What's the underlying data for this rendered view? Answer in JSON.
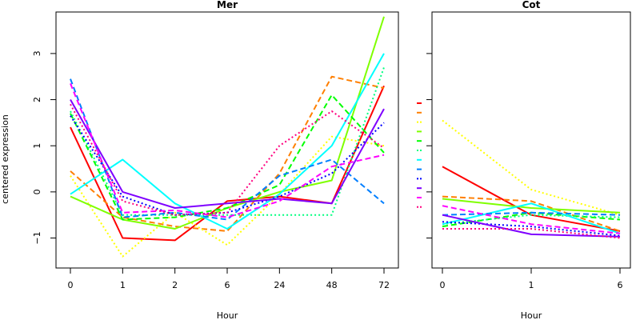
{
  "chart_data": [
    {
      "type": "line",
      "title": "Mer",
      "xlabel": "Hour",
      "ylabel": "centered expression",
      "categories": [
        "0",
        "1",
        "2",
        "6",
        "24",
        "48",
        "72"
      ],
      "yticks": [
        -1,
        0,
        1,
        2,
        3
      ],
      "ylim": [
        -1.65,
        3.9
      ],
      "series": [
        {
          "color": "#ff0000",
          "dash": "solid",
          "values": [
            1.4,
            -1.0,
            -1.05,
            -0.2,
            -0.1,
            -0.25,
            2.3
          ]
        },
        {
          "color": "#ff7f00",
          "dash": "dashed",
          "values": [
            0.45,
            -0.55,
            -0.75,
            -0.85,
            0.4,
            2.5,
            2.25
          ]
        },
        {
          "color": "#ffff00",
          "dash": "dotted",
          "values": [
            0.35,
            -1.4,
            -0.45,
            -1.15,
            -0.05,
            1.2,
            1.0
          ]
        },
        {
          "color": "#7fff00",
          "dash": "solid",
          "values": [
            -0.1,
            -0.6,
            -0.8,
            -0.35,
            0.0,
            0.25,
            3.8
          ]
        },
        {
          "color": "#00ff00",
          "dash": "dashed",
          "values": [
            1.7,
            -0.6,
            -0.55,
            -0.35,
            0.15,
            2.1,
            0.85
          ]
        },
        {
          "color": "#00ff7f",
          "dash": "dotted",
          "values": [
            1.75,
            -0.5,
            -0.5,
            -0.5,
            -0.5,
            -0.5,
            2.7
          ]
        },
        {
          "color": "#00ffff",
          "dash": "solid",
          "values": [
            -0.05,
            0.7,
            -0.25,
            -0.8,
            -0.05,
            1.0,
            3.0
          ]
        },
        {
          "color": "#007fff",
          "dash": "dashed",
          "values": [
            2.45,
            -0.55,
            -0.45,
            -0.6,
            0.35,
            0.7,
            -0.25
          ]
        },
        {
          "color": "#0000ff",
          "dash": "dotted",
          "values": [
            1.65,
            -0.1,
            -0.5,
            -0.45,
            -0.1,
            0.4,
            1.5
          ]
        },
        {
          "color": "#7f00ff",
          "dash": "solid",
          "values": [
            2.0,
            0.0,
            -0.35,
            -0.25,
            -0.15,
            -0.25,
            1.8
          ]
        },
        {
          "color": "#ff00ff",
          "dash": "dashed",
          "values": [
            2.35,
            -0.45,
            -0.4,
            -0.55,
            -0.2,
            0.55,
            0.8
          ]
        },
        {
          "color": "#ff007f",
          "dash": "dotted",
          "values": [
            1.9,
            -0.2,
            -0.5,
            -0.45,
            1.0,
            1.75,
            0.95
          ]
        }
      ]
    },
    {
      "type": "line",
      "title": "Cot",
      "xlabel": "Hour",
      "ylabel": "",
      "categories": [
        "0",
        "1",
        "6"
      ],
      "ylim": [
        -1.65,
        3.9
      ],
      "series": [
        {
          "color": "#ff0000",
          "dash": "solid",
          "values": [
            0.55,
            -0.5,
            -0.85
          ]
        },
        {
          "color": "#ff7f00",
          "dash": "dashed",
          "values": [
            -0.1,
            -0.2,
            -0.85
          ]
        },
        {
          "color": "#ffff00",
          "dash": "dotted",
          "values": [
            1.55,
            0.05,
            -0.5
          ]
        },
        {
          "color": "#7fff00",
          "dash": "solid",
          "values": [
            -0.15,
            -0.35,
            -0.45
          ]
        },
        {
          "color": "#00ff00",
          "dash": "dashed",
          "values": [
            -0.75,
            -0.45,
            -0.6
          ]
        },
        {
          "color": "#00ff7f",
          "dash": "dotted",
          "values": [
            -0.7,
            -0.5,
            -0.55
          ]
        },
        {
          "color": "#00ffff",
          "dash": "solid",
          "values": [
            -0.7,
            -0.25,
            -0.9
          ]
        },
        {
          "color": "#007fff",
          "dash": "dashed",
          "values": [
            -0.5,
            -0.45,
            -0.5
          ]
        },
        {
          "color": "#0000ff",
          "dash": "dotted",
          "values": [
            -0.65,
            -0.75,
            -0.95
          ]
        },
        {
          "color": "#7f00ff",
          "dash": "solid",
          "values": [
            -0.5,
            -0.92,
            -0.97
          ]
        },
        {
          "color": "#ff00ff",
          "dash": "dashed",
          "values": [
            -0.3,
            -0.7,
            -0.9
          ]
        },
        {
          "color": "#ff007f",
          "dash": "dotted",
          "values": [
            -0.8,
            -0.8,
            -1.0
          ]
        }
      ]
    }
  ]
}
